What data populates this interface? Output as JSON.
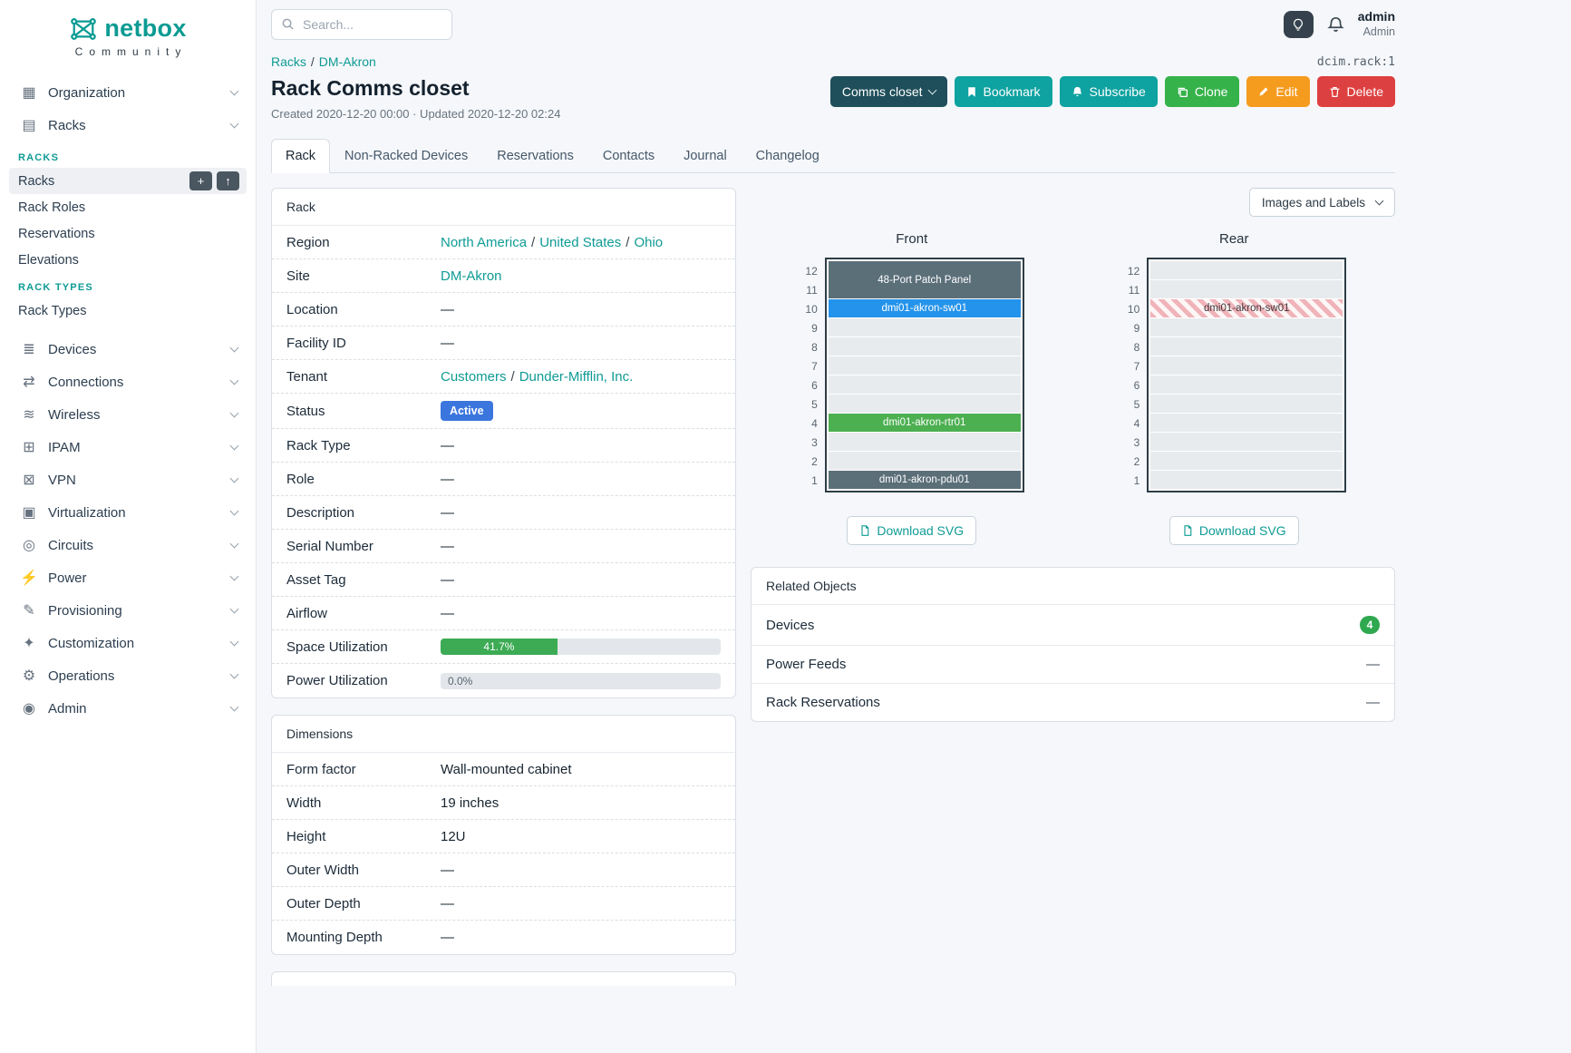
{
  "colors": {
    "brand": "#0b9b93",
    "link": "#0f9b94",
    "button_teal": "#0ea2a0",
    "button_dark": "#1f4f5a",
    "button_green": "#36b24a",
    "button_orange": "#f59b1e",
    "button_red": "#dd4040",
    "status_active": "#3b76de",
    "utilization_green": "#3cab54",
    "badge_green": "#2fa84f"
  },
  "brand": {
    "name": "netbox",
    "subtitle": "Community"
  },
  "header": {
    "search_placeholder": "Search...",
    "user_name": "admin",
    "user_role": "Admin"
  },
  "sidebar": {
    "top_items": [
      {
        "label": "Organization",
        "icon": "organization-icon"
      },
      {
        "label": "Racks",
        "icon": "racks-icon"
      }
    ],
    "racks_menu": [
      {
        "heading": "RACKS",
        "items": [
          {
            "label": "Racks",
            "active": true,
            "buttons": [
              "add",
              "import"
            ]
          },
          {
            "label": "Rack Roles"
          },
          {
            "label": "Reservations"
          },
          {
            "label": "Elevations"
          }
        ]
      },
      {
        "heading": "RACK TYPES",
        "items": [
          {
            "label": "Rack Types"
          }
        ]
      }
    ],
    "items": [
      {
        "label": "Devices",
        "icon": "devices-icon"
      },
      {
        "label": "Connections",
        "icon": "connections-icon"
      },
      {
        "label": "Wireless",
        "icon": "wireless-icon"
      },
      {
        "label": "IPAM",
        "icon": "ipam-icon"
      },
      {
        "label": "VPN",
        "icon": "vpn-icon"
      },
      {
        "label": "Virtualization",
        "icon": "virtualization-icon"
      },
      {
        "label": "Circuits",
        "icon": "circuits-icon"
      },
      {
        "label": "Power",
        "icon": "power-icon"
      },
      {
        "label": "Provisioning",
        "icon": "provisioning-icon"
      },
      {
        "label": "Customization",
        "icon": "customization-icon"
      },
      {
        "label": "Operations",
        "icon": "operations-icon"
      },
      {
        "label": "Admin",
        "icon": "admin-icon"
      }
    ]
  },
  "breadcrumb": {
    "links": [
      "Racks",
      "DM-Akron"
    ],
    "object_ref": "dcim.rack:1"
  },
  "page": {
    "title": "Rack Comms closet",
    "meta": "Created 2020-12-20 00:00 · Updated 2020-12-20 02:24"
  },
  "actions": {
    "name_button": "Comms closet",
    "bookmark": "Bookmark",
    "subscribe": "Subscribe",
    "clone": "Clone",
    "edit": "Edit",
    "delete": "Delete"
  },
  "tabs": [
    "Rack",
    "Non-Racked Devices",
    "Reservations",
    "Contacts",
    "Journal",
    "Changelog"
  ],
  "rack": {
    "panel_title": "Rack",
    "region_label": "Region",
    "region": [
      "North America",
      "United States",
      "Ohio"
    ],
    "site_label": "Site",
    "site": "DM-Akron",
    "location_label": "Location",
    "location": "—",
    "facility_label": "Facility ID",
    "facility": "—",
    "tenant_label": "Tenant",
    "tenant": [
      "Customers",
      "Dunder-Mifflin, Inc."
    ],
    "status_label": "Status",
    "status": "Active",
    "rack_type_label": "Rack Type",
    "rack_type": "—",
    "role_label": "Role",
    "role": "—",
    "description_label": "Description",
    "description": "—",
    "serial_label": "Serial Number",
    "serial": "—",
    "asset_label": "Asset Tag",
    "asset": "—",
    "airflow_label": "Airflow",
    "airflow": "—",
    "space_label": "Space Utilization",
    "space_pct": 41.7,
    "space_text": "41.7%",
    "power_label": "Power Utilization",
    "power_pct": 0,
    "power_text": "0.0%"
  },
  "dimensions": {
    "panel_title": "Dimensions",
    "rows": [
      {
        "label": "Form factor",
        "value": "Wall-mounted cabinet"
      },
      {
        "label": "Width",
        "value": "19 inches"
      },
      {
        "label": "Height",
        "value": "12U"
      },
      {
        "label": "Outer Width",
        "value": "—"
      },
      {
        "label": "Outer Depth",
        "value": "—"
      },
      {
        "label": "Mounting Depth",
        "value": "—"
      }
    ]
  },
  "elevations": {
    "view_select": "Images and Labels",
    "download_label": "Download SVG",
    "unit_count": 12,
    "colors": {
      "slate": "#5b6f79",
      "blue": "#2493eb",
      "green": "#4caf50"
    },
    "front": {
      "title": "Front",
      "devices": [
        {
          "label": "48-Port Patch Panel",
          "top_unit": 12,
          "u_height": 2,
          "style": "slate"
        },
        {
          "label": "dmi01-akron-sw01",
          "top_unit": 10,
          "u_height": 1,
          "style": "blue"
        },
        {
          "label": "dmi01-akron-rtr01",
          "top_unit": 4,
          "u_height": 1,
          "style": "green"
        },
        {
          "label": "dmi01-akron-pdu01",
          "top_unit": 1,
          "u_height": 1,
          "style": "slate"
        }
      ]
    },
    "rear": {
      "title": "Rear",
      "devices": [
        {
          "label": "dmi01-akron-sw01",
          "top_unit": 10,
          "u_height": 1,
          "style": "ghost"
        }
      ]
    }
  },
  "related": {
    "panel_title": "Related Objects",
    "rows": [
      {
        "label": "Devices",
        "badge": "4"
      },
      {
        "label": "Power Feeds",
        "value": "—"
      },
      {
        "label": "Rack Reservations",
        "value": "—"
      }
    ]
  }
}
